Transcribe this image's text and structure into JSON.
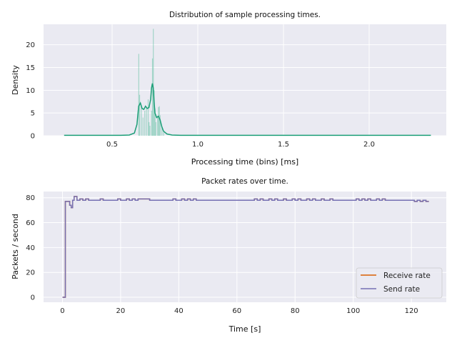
{
  "colors": {
    "plot_bg": "#eaeaf2",
    "grid": "#ffffff",
    "hist_bar": "#66c2a5",
    "kde_line": "#1b9e77",
    "receive_rate": "#d95f02",
    "send_rate": "#7570b3"
  },
  "chart_data": [
    {
      "type": "histogram",
      "title": "Distribution of sample processing times.",
      "xlabel": "Processing time (bins) [ms]",
      "ylabel": "Density",
      "xlim": [
        0.1,
        2.45
      ],
      "ylim": [
        0,
        24.5
      ],
      "xticks": [
        0.5,
        1.0,
        1.5,
        2.0
      ],
      "xtick_labels": [
        "0.5",
        "1.0",
        "1.5",
        "2.0"
      ],
      "yticks": [
        0,
        5,
        10,
        15,
        20
      ],
      "ytick_labels": [
        "0",
        "5",
        "10",
        "15",
        "20"
      ],
      "grid": true,
      "bins": [
        {
          "x": 0.655,
          "y": 18.0
        },
        {
          "x": 0.66,
          "y": 9.0
        },
        {
          "x": 0.67,
          "y": 6.5
        },
        {
          "x": 0.68,
          "y": 4.0
        },
        {
          "x": 0.69,
          "y": 5.5
        },
        {
          "x": 0.7,
          "y": 6.2
        },
        {
          "x": 0.71,
          "y": 8.0
        },
        {
          "x": 0.715,
          "y": 3.0
        },
        {
          "x": 0.72,
          "y": 2.2
        },
        {
          "x": 0.73,
          "y": 5.5
        },
        {
          "x": 0.735,
          "y": 17.0
        },
        {
          "x": 0.74,
          "y": 23.5
        },
        {
          "x": 0.745,
          "y": 10.0
        },
        {
          "x": 0.75,
          "y": 6.0
        },
        {
          "x": 0.755,
          "y": 3.0
        },
        {
          "x": 0.765,
          "y": 4.0
        },
        {
          "x": 0.77,
          "y": 6.3
        },
        {
          "x": 0.775,
          "y": 6.5
        },
        {
          "x": 0.78,
          "y": 4.5
        },
        {
          "x": 0.79,
          "y": 2.0
        },
        {
          "x": 0.8,
          "y": 0.8
        }
      ],
      "kde": {
        "x": [
          0.22,
          0.3,
          0.4,
          0.5,
          0.55,
          0.6,
          0.63,
          0.645,
          0.655,
          0.665,
          0.675,
          0.685,
          0.695,
          0.705,
          0.715,
          0.725,
          0.73,
          0.735,
          0.74,
          0.745,
          0.75,
          0.76,
          0.77,
          0.78,
          0.79,
          0.8,
          0.82,
          0.85,
          0.9,
          1.0,
          1.5,
          2.0,
          2.36
        ],
        "y": [
          0.1,
          0.1,
          0.1,
          0.1,
          0.1,
          0.15,
          0.6,
          2.5,
          6.5,
          7.2,
          6.0,
          5.8,
          6.5,
          6.0,
          6.2,
          8.0,
          10.5,
          11.5,
          10.5,
          7.5,
          5.0,
          4.0,
          4.3,
          3.5,
          2.0,
          1.0,
          0.4,
          0.15,
          0.1,
          0.1,
          0.1,
          0.1,
          0.1
        ]
      }
    },
    {
      "type": "line",
      "title": "Packet rates over time.",
      "xlabel": "Time [s]",
      "ylabel": "Packets / second",
      "xlim": [
        -6.5,
        132
      ],
      "ylim": [
        -4,
        85
      ],
      "xticks": [
        0,
        20,
        40,
        60,
        80,
        100,
        120
      ],
      "xtick_labels": [
        "0",
        "20",
        "40",
        "60",
        "80",
        "100",
        "120"
      ],
      "yticks": [
        0,
        20,
        40,
        60,
        80
      ],
      "ytick_labels": [
        "0",
        "20",
        "40",
        "60",
        "80"
      ],
      "grid": true,
      "legend_position": "lower-right",
      "series": [
        {
          "name": "Receive rate",
          "x": [
            0,
            1,
            2,
            2.5,
            3,
            3.5,
            4,
            5,
            6,
            7,
            8,
            9,
            12,
            13,
            14,
            18,
            19,
            20,
            21,
            22,
            23,
            24,
            25,
            26,
            30,
            37,
            38,
            39,
            40,
            41,
            42,
            43,
            44,
            45,
            46,
            65,
            66,
            67,
            68,
            69,
            70,
            71,
            72,
            73,
            74,
            75,
            76,
            77,
            78,
            79,
            80,
            81,
            82,
            83,
            84,
            85,
            86,
            87,
            88,
            89,
            90,
            91,
            92,
            93,
            100,
            101,
            102,
            103,
            104,
            105,
            106,
            107,
            108,
            109,
            110,
            111,
            112,
            120,
            121,
            122,
            123,
            124,
            125,
            126
          ],
          "y": [
            0,
            77,
            77,
            74,
            72,
            78,
            81,
            78,
            79,
            78,
            79,
            78,
            78,
            79,
            78,
            78,
            79,
            78,
            78,
            79,
            78,
            79,
            78,
            79,
            78,
            78,
            79,
            78,
            78,
            79,
            78,
            79,
            78,
            79,
            78,
            78,
            79,
            78,
            79,
            78,
            78,
            79,
            78,
            79,
            78,
            78,
            79,
            78,
            78,
            79,
            78,
            79,
            78,
            78,
            79,
            78,
            79,
            78,
            78,
            79,
            78,
            78,
            79,
            78,
            78,
            79,
            78,
            79,
            78,
            79,
            78,
            78,
            79,
            78,
            79,
            78,
            78,
            78,
            77,
            78,
            77,
            78,
            77,
            77
          ]
        },
        {
          "name": "Send rate",
          "x": [
            0,
            1,
            2,
            2.5,
            3,
            3.5,
            4,
            5,
            6,
            7,
            8,
            9,
            12,
            13,
            14,
            18,
            19,
            20,
            21,
            22,
            23,
            24,
            25,
            26,
            30,
            37,
            38,
            39,
            40,
            41,
            42,
            43,
            44,
            45,
            46,
            65,
            66,
            67,
            68,
            69,
            70,
            71,
            72,
            73,
            74,
            75,
            76,
            77,
            78,
            79,
            80,
            81,
            82,
            83,
            84,
            85,
            86,
            87,
            88,
            89,
            90,
            91,
            92,
            93,
            100,
            101,
            102,
            103,
            104,
            105,
            106,
            107,
            108,
            109,
            110,
            111,
            112,
            120,
            121,
            122,
            123,
            124,
            125,
            126
          ],
          "y": [
            0,
            77,
            77,
            74,
            72,
            78,
            81,
            78,
            79,
            78,
            79,
            78,
            78,
            79,
            78,
            78,
            79,
            78,
            78,
            79,
            78,
            79,
            78,
            79,
            78,
            78,
            79,
            78,
            78,
            79,
            78,
            79,
            78,
            79,
            78,
            78,
            79,
            78,
            79,
            78,
            78,
            79,
            78,
            79,
            78,
            78,
            79,
            78,
            78,
            79,
            78,
            79,
            78,
            78,
            79,
            78,
            79,
            78,
            78,
            79,
            78,
            78,
            79,
            78,
            78,
            79,
            78,
            79,
            78,
            79,
            78,
            78,
            79,
            78,
            79,
            78,
            78,
            78,
            77,
            78,
            77,
            78,
            77,
            77
          ]
        }
      ]
    }
  ]
}
